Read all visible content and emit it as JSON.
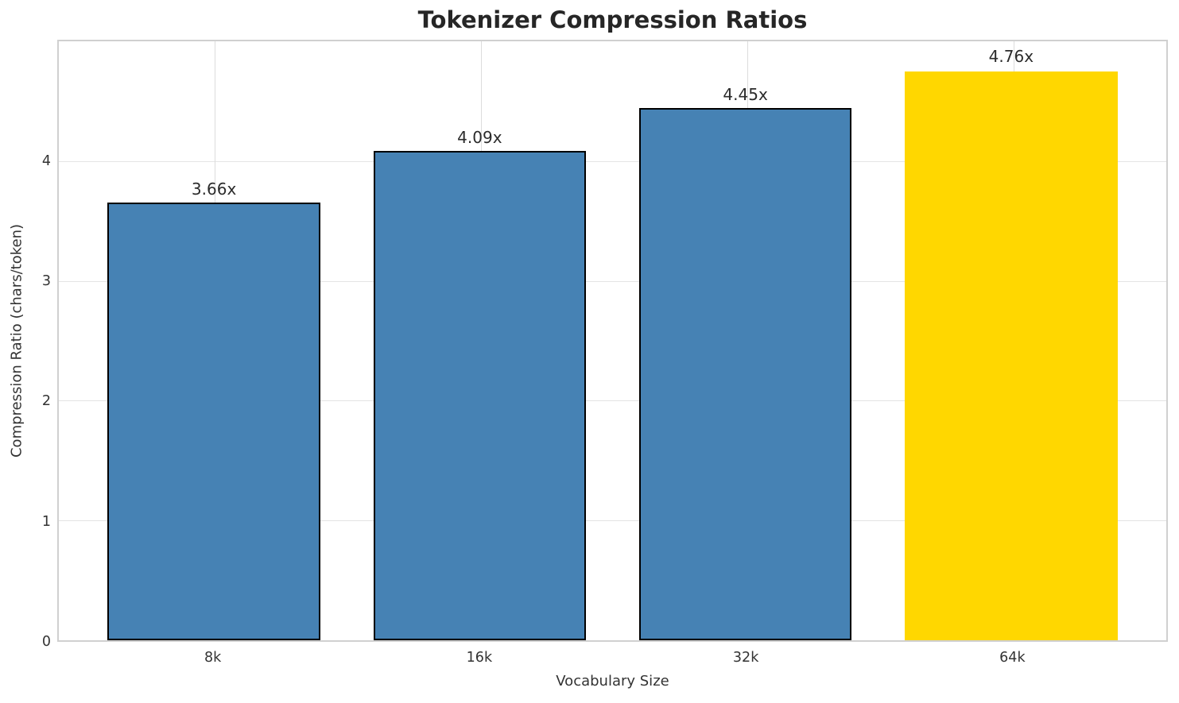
{
  "chart_data": {
    "type": "bar",
    "title": "Tokenizer Compression Ratios",
    "xlabel": "Vocabulary Size",
    "ylabel": "Compression Ratio (chars/token)",
    "categories": [
      "8k",
      "16k",
      "32k",
      "64k"
    ],
    "values": [
      3.66,
      4.09,
      4.45,
      4.76
    ],
    "bar_labels": [
      "3.66x",
      "4.09x",
      "4.45x",
      "4.76x"
    ],
    "yticks": [
      0,
      1,
      2,
      3,
      4
    ],
    "ylim": [
      0,
      5.01
    ],
    "grid": true,
    "legend": null,
    "highlight_index": 3,
    "colors": {
      "bar_default": "#4682B4",
      "bar_highlight": "#FFD700",
      "bar_edge": "#000000",
      "grid_horizontal": "#e4e4e4",
      "grid_vertical": "#dcdcdc",
      "spine": "#d0d0d0",
      "title_text": "#262626",
      "label_text": "#333333",
      "background": "#FFFFFF"
    }
  }
}
